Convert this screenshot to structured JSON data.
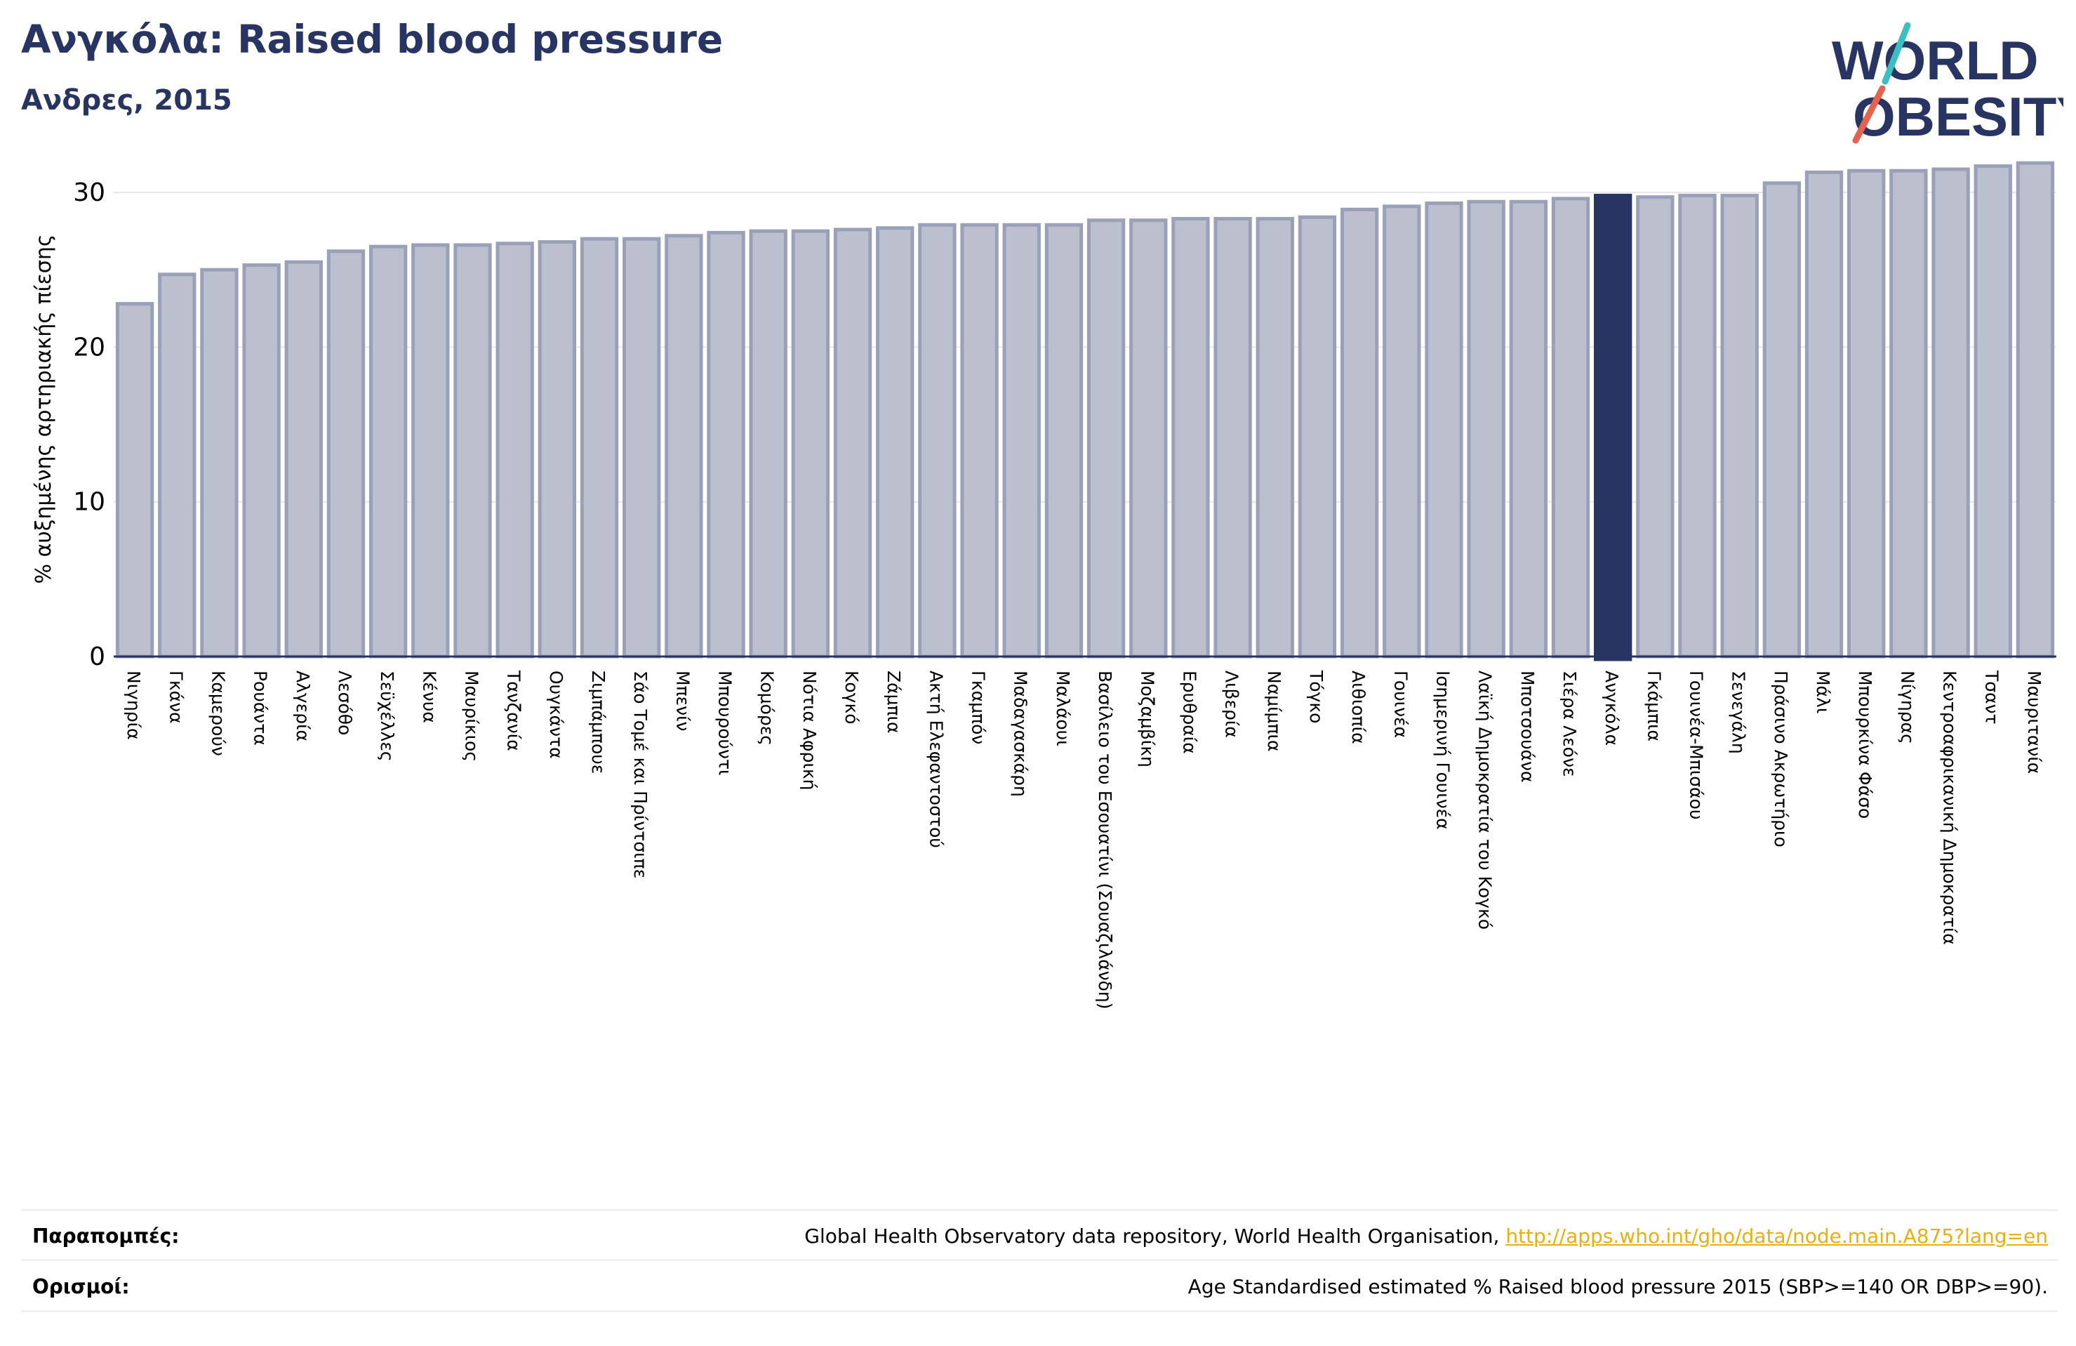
{
  "header": {
    "title": "Ανγκόλα: Raised blood pressure",
    "subtitle": "Ανδρες, 2015"
  },
  "logo": {
    "line1": "WORLD",
    "line2": "OBESITY"
  },
  "colors": {
    "bar_fill": "#bcc0ce",
    "bar_edge": "#9aa0b8",
    "highlight": "#283562",
    "title": "#283562",
    "link": "#e8b00f",
    "logo_teal": "#3bbfc0",
    "logo_red": "#e4624e"
  },
  "chart_data": {
    "type": "bar",
    "ylabel": "% αυξημένης αρτηριακής πίεσης",
    "ylim": [
      0,
      32
    ],
    "yticks": [
      0,
      10,
      20,
      30
    ],
    "grid": true,
    "highlight_category": "Ανγκόλα",
    "categories": [
      "Νιγηρία",
      "Γκάνα",
      "Καμερούν",
      "Ρουάντα",
      "Αλγερία",
      "Λεσόθο",
      "Σεϋχέλλες",
      "Κένυα",
      "Μαυρίκιος",
      "Τανζανία",
      "Ουγκάντα",
      "Ζιμπάμπουε",
      "Σάο Τομέ και Πρίντσιπε",
      "Μπενίν",
      "Μπουρούντι",
      "Κομόρες",
      "Νότια Αφρική",
      "Κογκό",
      "Ζάμπια",
      "Ακτή Ελεφαντοστού",
      "Γκαμπόν",
      "Μαδαγασκάρη",
      "Μαλάουι",
      "Βασίλειο του Εσουατίνι (Σουαζιλάνδη)",
      "Μοζαμβίκη",
      "Ερυθραία",
      "Λιβερία",
      "Ναμίμπια",
      "Τόγκο",
      "Αιθιοπία",
      "Γουινέα",
      "Ισημερινή Γουινέα",
      "Λαϊκή Δημοκρατία του Κογκό",
      "Μποτσουάνα",
      "Σιέρα Λεόνε",
      "Ανγκόλα",
      "Γκάμπια",
      "Γουινέα-Μπισάου",
      "Σενεγάλη",
      "Πράσινο Ακρωτήριο",
      "Μάλι",
      "Μπουρκίνα Φάσο",
      "Νίγηρας",
      "Κεντροαφρικανική Δημοκρατία",
      "Τσαντ",
      "Μαυριτανία"
    ],
    "values": [
      22.8,
      24.7,
      25.0,
      25.3,
      25.5,
      26.2,
      26.5,
      26.6,
      26.6,
      26.7,
      26.8,
      27.0,
      27.0,
      27.2,
      27.4,
      27.5,
      27.5,
      27.6,
      27.7,
      27.9,
      27.9,
      27.9,
      27.9,
      28.2,
      28.2,
      28.3,
      28.3,
      28.3,
      28.4,
      28.9,
      29.1,
      29.3,
      29.4,
      29.4,
      29.6,
      29.8,
      29.7,
      29.8,
      29.8,
      30.6,
      31.3,
      31.4,
      31.4,
      31.5,
      31.7,
      31.9
    ]
  },
  "footer": {
    "references_label": "Παραπομπές:",
    "references_text": "Global Health Observatory data repository, World Health Organisation,",
    "references_link": "http://apps.who.int/gho/data/node.main.A875?lang=en",
    "definitions_label": "Ορισμοί:",
    "definitions_text": "Age Standardised estimated % Raised blood pressure 2015 (SBP>=140 OR DBP>=90)."
  }
}
